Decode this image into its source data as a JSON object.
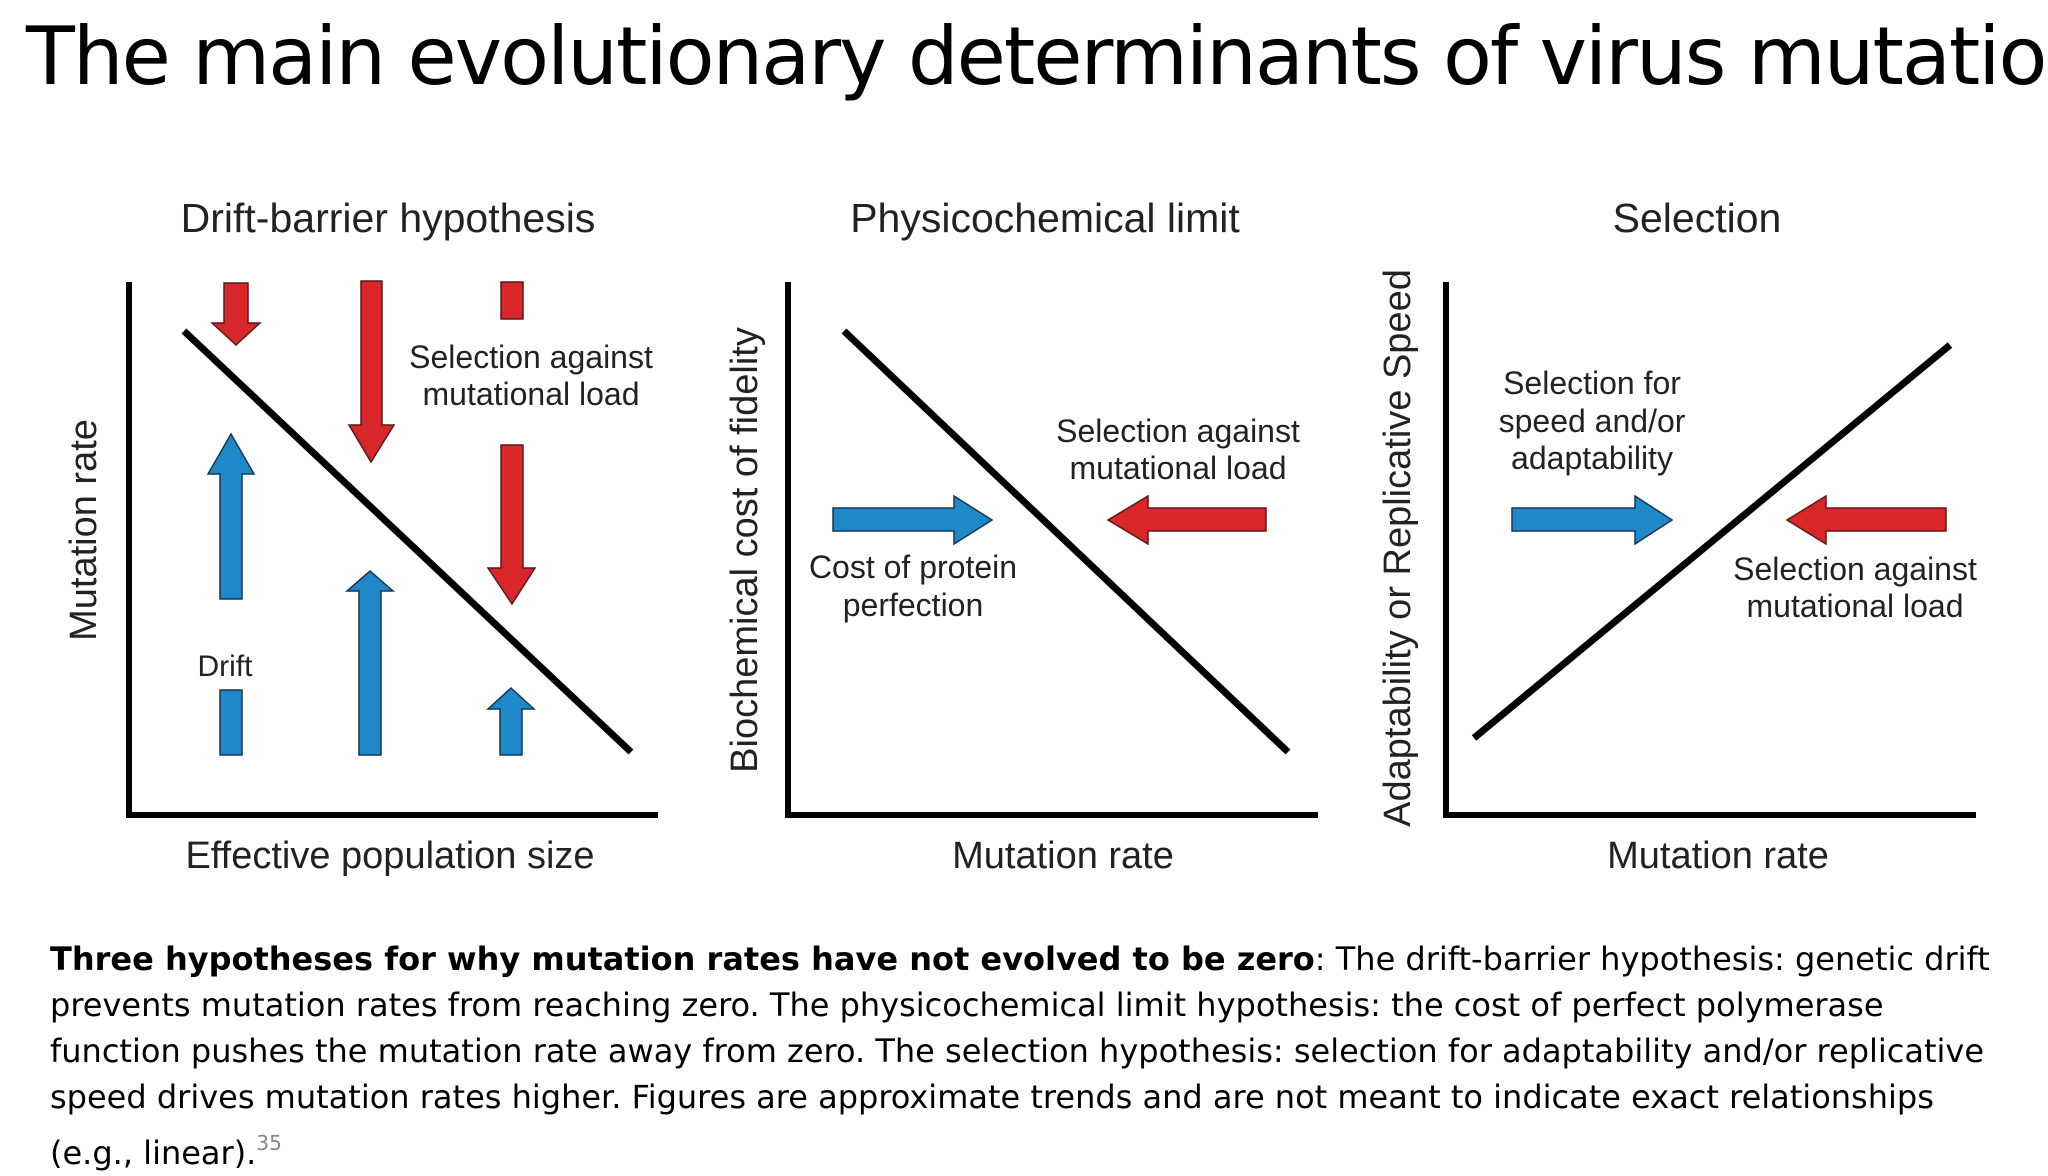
{
  "title": "The main evolutionary determinants of virus mutation",
  "panels": [
    {
      "title": "Drift-barrier hypothesis",
      "xlabel": "Effective population size",
      "ylabel": "Mutation rate",
      "annotation_lines": [
        "Selection against",
        "mutational load"
      ],
      "drift_label": "Drift"
    },
    {
      "title": "Physicochemical limit",
      "xlabel": "Mutation rate",
      "ylabel": "Biochemical cost of fidelity",
      "selection_lines": [
        "Selection against",
        "mutational load"
      ],
      "cost_lines": [
        "Cost of protein",
        "perfection"
      ]
    },
    {
      "title": "Selection",
      "xlabel": "Mutation rate",
      "ylabel": "Adaptability or Replicative Speed",
      "speed_lines": [
        "Selection for",
        "speed and/or",
        "adaptability"
      ],
      "selection_lines": [
        "Selection against",
        "mutational load"
      ]
    }
  ],
  "colors": {
    "red_arrow": "#d9262b",
    "blue_arrow": "#1e88c9",
    "arrow_outline": "#5a1a1a",
    "line": "#000000"
  },
  "caption": {
    "bold": "Three hypotheses for why mutation rates have not evolved to be zero",
    "text": ": The drift-barrier hypothesis: genetic drift prevents mutation rates from reaching zero. The physicochemical limit hypothesis: the cost of perfect polymerase function pushes the mutation rate away from zero. The selection hypothesis: selection for adaptability and/or replicative speed drives mutation rates higher. Figures are approximate trends and are not meant to indicate exact relationships (e.g., linear).",
    "page_number": "35"
  }
}
